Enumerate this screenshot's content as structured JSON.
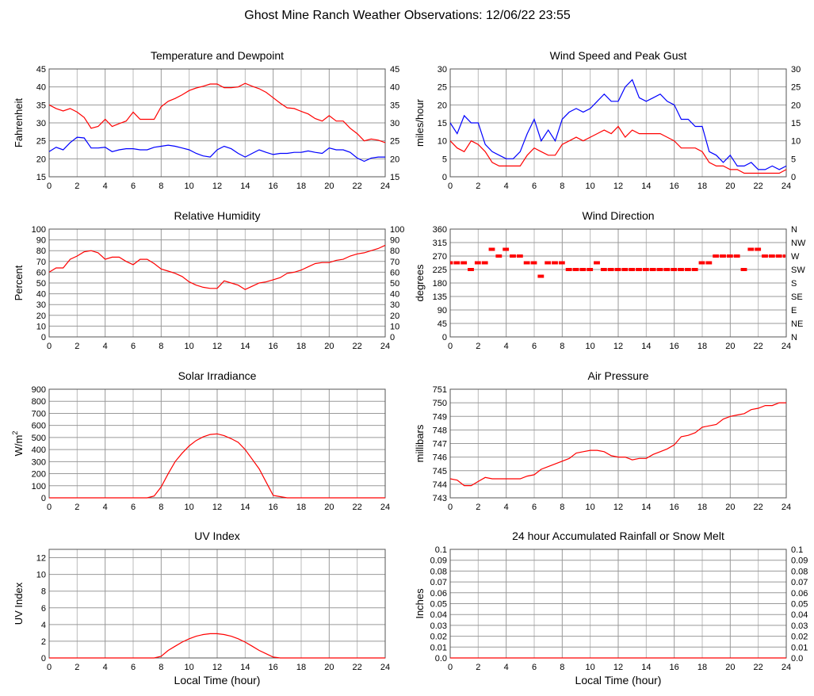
{
  "title": "Ghost Mine Ranch Weather Observations: 12/06/22 23:55",
  "x_axis_label": "Local Time (hour)",
  "colors": {
    "red": "#ff0000",
    "blue": "#0000ff",
    "grid": "#999999",
    "grid_light": "#cccccc"
  },
  "chart_data": [
    {
      "id": "temperature",
      "type": "line",
      "title": "Temperature and Dewpoint",
      "ylabel": "Fahrenheit",
      "xlim": [
        0,
        24
      ],
      "ylim": [
        15,
        45
      ],
      "xticks": [
        0,
        2,
        4,
        6,
        8,
        10,
        12,
        14,
        16,
        18,
        20,
        22,
        24
      ],
      "yticks": [
        15,
        20,
        25,
        30,
        35,
        40,
        45
      ],
      "right_ticks": [
        "15",
        "20",
        "25",
        "30",
        "35",
        "40",
        "45"
      ],
      "grid": true,
      "x": [
        0,
        0.5,
        1,
        1.5,
        2,
        2.5,
        3,
        3.5,
        4,
        4.5,
        5,
        5.5,
        6,
        6.5,
        7,
        7.5,
        8,
        8.5,
        9,
        9.5,
        10,
        10.5,
        11,
        11.5,
        12,
        12.5,
        13,
        13.5,
        14,
        14.5,
        15,
        15.5,
        16,
        16.5,
        17,
        17.5,
        18,
        18.5,
        19,
        19.5,
        20,
        20.5,
        21,
        21.5,
        22,
        22.5,
        23,
        23.5,
        24
      ],
      "series": [
        {
          "color": "#ff0000",
          "values": [
            35,
            34,
            33.3,
            34,
            33,
            31.5,
            28.5,
            29,
            31,
            29,
            29.8,
            30.5,
            33,
            31,
            31,
            31,
            34.5,
            36,
            36.8,
            37.8,
            39,
            39.7,
            40.2,
            40.8,
            40.8,
            39.8,
            39.8,
            40,
            41,
            40.2,
            39.5,
            38.5,
            37,
            35.5,
            34.2,
            34,
            33.2,
            32.5,
            31.2,
            30.5,
            32,
            30.5,
            30.5,
            28.5,
            27,
            25,
            25.5,
            25.2,
            24.5
          ]
        },
        {
          "color": "#0000ff",
          "values": [
            22,
            23.2,
            22.5,
            24.5,
            26,
            25.8,
            23,
            23,
            23.2,
            22,
            22.5,
            22.8,
            22.8,
            22.5,
            22.5,
            23.2,
            23.5,
            23.8,
            23.5,
            23,
            22.5,
            21.5,
            20.8,
            20.5,
            22.5,
            23.5,
            22.8,
            21.5,
            20.5,
            21.5,
            22.5,
            21.8,
            21.2,
            21.5,
            21.5,
            21.8,
            21.8,
            22.2,
            21.8,
            21.5,
            23,
            22.5,
            22.5,
            21.8,
            20.2,
            19.3,
            20.2,
            20.5,
            20.5
          ]
        }
      ]
    },
    {
      "id": "wind-speed",
      "type": "line",
      "title": "Wind Speed and Peak Gust",
      "ylabel": "miles/hour",
      "xlim": [
        0,
        24
      ],
      "ylim": [
        0,
        30
      ],
      "xticks": [
        0,
        2,
        4,
        6,
        8,
        10,
        12,
        14,
        16,
        18,
        20,
        22,
        24
      ],
      "yticks": [
        0,
        5,
        10,
        15,
        20,
        25,
        30
      ],
      "right_ticks": [
        "0",
        "5",
        "10",
        "15",
        "20",
        "25",
        "30"
      ],
      "grid": true,
      "x": [
        0,
        0.5,
        1,
        1.5,
        2,
        2.5,
        3,
        3.5,
        4,
        4.5,
        5,
        5.5,
        6,
        6.5,
        7,
        7.5,
        8,
        8.5,
        9,
        9.5,
        10,
        10.5,
        11,
        11.5,
        12,
        12.5,
        13,
        13.5,
        14,
        14.5,
        15,
        15.5,
        16,
        16.5,
        17,
        17.5,
        18,
        18.5,
        19,
        19.5,
        20,
        20.5,
        21,
        21.5,
        22,
        22.5,
        23,
        23.5,
        24
      ],
      "series": [
        {
          "color": "#0000ff",
          "values": [
            15,
            12,
            17,
            15,
            15,
            9,
            7,
            6,
            5,
            5,
            7,
            12,
            16,
            10,
            13,
            10,
            16,
            18,
            19,
            18,
            19,
            21,
            23,
            21,
            21,
            25,
            27,
            22,
            21,
            22,
            23,
            21,
            20,
            16,
            16,
            14,
            14,
            7,
            6,
            4,
            6,
            3,
            3,
            4,
            2,
            2,
            3,
            2,
            3
          ]
        },
        {
          "color": "#ff0000",
          "values": [
            10,
            8,
            7,
            10,
            9,
            7,
            4,
            3,
            3,
            3,
            3,
            6,
            8,
            7,
            6,
            6,
            9,
            10,
            11,
            10,
            11,
            12,
            13,
            12,
            14,
            11,
            13,
            12,
            12,
            12,
            12,
            11,
            10,
            8,
            8,
            8,
            7,
            4,
            3,
            3,
            2,
            2,
            1,
            1,
            1,
            1,
            1,
            1,
            2
          ]
        }
      ]
    },
    {
      "id": "humidity",
      "type": "line",
      "title": "Relative Humidity",
      "ylabel": "Percent",
      "xlim": [
        0,
        24
      ],
      "ylim": [
        0,
        100
      ],
      "xticks": [
        0,
        2,
        4,
        6,
        8,
        10,
        12,
        14,
        16,
        18,
        20,
        22,
        24
      ],
      "yticks": [
        0,
        10,
        20,
        30,
        40,
        50,
        60,
        70,
        80,
        90,
        100
      ],
      "right_ticks": [
        "0",
        "10",
        "20",
        "30",
        "40",
        "50",
        "60",
        "70",
        "80",
        "90",
        "100"
      ],
      "grid": true,
      "x": [
        0,
        0.5,
        1,
        1.5,
        2,
        2.5,
        3,
        3.5,
        4,
        4.5,
        5,
        5.5,
        6,
        6.5,
        7,
        7.5,
        8,
        8.5,
        9,
        9.5,
        10,
        10.5,
        11,
        11.5,
        12,
        12.5,
        13,
        13.5,
        14,
        14.5,
        15,
        15.5,
        16,
        16.5,
        17,
        17.5,
        18,
        18.5,
        19,
        19.5,
        20,
        20.5,
        21,
        21.5,
        22,
        22.5,
        23,
        23.5,
        24
      ],
      "series": [
        {
          "color": "#ff0000",
          "values": [
            60,
            64,
            64,
            72,
            75,
            79,
            80,
            78,
            72,
            74,
            74,
            70,
            67,
            72,
            72,
            68,
            63,
            61,
            59,
            56,
            51,
            48,
            46,
            45,
            45,
            52,
            50,
            48,
            44,
            47,
            50,
            51,
            53,
            55,
            59,
            60,
            62,
            65,
            68,
            69,
            69,
            71,
            72,
            75,
            77,
            78,
            80,
            82,
            85
          ]
        }
      ]
    },
    {
      "id": "wind-direction",
      "type": "scatter",
      "title": "Wind Direction",
      "ylabel": "degrees",
      "xlim": [
        0,
        24
      ],
      "ylim": [
        0,
        360
      ],
      "xticks": [
        0,
        2,
        4,
        6,
        8,
        10,
        12,
        14,
        16,
        18,
        20,
        22,
        24
      ],
      "yticks": [
        0,
        45,
        90,
        135,
        180,
        225,
        270,
        315,
        360
      ],
      "right_ticks": [
        "N",
        "NE",
        "E",
        "SE",
        "S",
        "SW",
        "W",
        "NW",
        "N"
      ],
      "grid": true,
      "x": [
        0,
        0.5,
        1,
        1.5,
        2,
        2.5,
        3,
        3.5,
        4,
        4.5,
        5,
        5.5,
        6,
        6.5,
        7,
        7.5,
        8,
        8.5,
        9,
        9.5,
        10,
        10.5,
        11,
        11.5,
        12,
        12.5,
        13,
        13.5,
        14,
        14.5,
        15,
        15.5,
        16,
        16.5,
        17,
        17.5,
        18,
        18.5,
        19,
        19.5,
        20,
        20.5,
        21,
        21.5,
        22,
        22.5,
        23,
        23.5,
        24
      ],
      "series": [
        {
          "color": "#ff0000",
          "values": [
            247.5,
            247.5,
            247.5,
            225,
            247.5,
            247.5,
            292.5,
            270,
            292.5,
            270,
            270,
            247.5,
            247.5,
            202.5,
            247.5,
            247.5,
            247.5,
            225,
            225,
            225,
            225,
            247.5,
            225,
            225,
            225,
            225,
            225,
            225,
            225,
            225,
            225,
            225,
            225,
            225,
            225,
            225,
            247.5,
            247.5,
            270,
            270,
            270,
            270,
            225,
            292.5,
            292.5,
            270,
            270,
            270,
            270
          ]
        }
      ]
    },
    {
      "id": "solar",
      "type": "line",
      "title": "Solar Irradiance",
      "ylabel": "W/m",
      "ylabel_sup": "2",
      "xlim": [
        0,
        24
      ],
      "ylim": [
        0,
        900
      ],
      "xticks": [
        0,
        2,
        4,
        6,
        8,
        10,
        12,
        14,
        16,
        18,
        20,
        22,
        24
      ],
      "yticks": [
        0,
        100,
        200,
        300,
        400,
        500,
        600,
        700,
        800,
        900
      ],
      "right_ticks": [],
      "grid": true,
      "x": [
        0,
        0.5,
        1,
        1.5,
        2,
        2.5,
        3,
        3.5,
        4,
        4.5,
        5,
        5.5,
        6,
        6.5,
        7,
        7.5,
        8,
        8.5,
        9,
        9.5,
        10,
        10.5,
        11,
        11.5,
        12,
        12.5,
        13,
        13.5,
        14,
        14.5,
        15,
        15.5,
        16,
        16.5,
        17,
        17.5,
        18,
        18.5,
        19,
        19.5,
        20,
        20.5,
        21,
        21.5,
        22,
        22.5,
        23,
        23.5,
        24
      ],
      "series": [
        {
          "color": "#ff0000",
          "values": [
            0,
            0,
            0,
            0,
            0,
            0,
            0,
            0,
            0,
            0,
            0,
            0,
            0,
            0,
            0,
            15,
            90,
            200,
            300,
            370,
            430,
            475,
            505,
            525,
            530,
            515,
            490,
            460,
            400,
            320,
            240,
            130,
            20,
            10,
            0,
            0,
            0,
            0,
            0,
            0,
            0,
            0,
            0,
            0,
            0,
            0,
            0,
            0,
            0
          ]
        }
      ]
    },
    {
      "id": "pressure",
      "type": "line",
      "title": "Air Pressure",
      "ylabel": "millibars",
      "xlim": [
        0,
        24
      ],
      "ylim": [
        743,
        751
      ],
      "xticks": [
        0,
        2,
        4,
        6,
        8,
        10,
        12,
        14,
        16,
        18,
        20,
        22,
        24
      ],
      "yticks": [
        743,
        744,
        745,
        746,
        747,
        748,
        749,
        750,
        751
      ],
      "right_ticks": [],
      "grid": true,
      "x": [
        0,
        0.5,
        1,
        1.5,
        2,
        2.5,
        3,
        3.5,
        4,
        4.5,
        5,
        5.5,
        6,
        6.5,
        7,
        7.5,
        8,
        8.5,
        9,
        9.5,
        10,
        10.5,
        11,
        11.5,
        12,
        12.5,
        13,
        13.5,
        14,
        14.5,
        15,
        15.5,
        16,
        16.5,
        17,
        17.5,
        18,
        18.5,
        19,
        19.5,
        20,
        20.5,
        21,
        21.5,
        22,
        22.5,
        23,
        23.5,
        24
      ],
      "series": [
        {
          "color": "#ff0000",
          "values": [
            744.4,
            744.3,
            743.9,
            743.9,
            744.2,
            744.5,
            744.4,
            744.4,
            744.4,
            744.4,
            744.4,
            744.6,
            744.7,
            745.1,
            745.3,
            745.5,
            745.7,
            745.9,
            746.3,
            746.4,
            746.5,
            746.5,
            746.4,
            746.1,
            746,
            746,
            745.8,
            745.9,
            745.9,
            746.2,
            746.4,
            746.6,
            746.9,
            747.5,
            747.6,
            747.8,
            748.2,
            748.3,
            748.4,
            748.8,
            749,
            749.1,
            749.2,
            749.5,
            749.6,
            749.8,
            749.8,
            750,
            750
          ]
        }
      ]
    },
    {
      "id": "uv",
      "type": "line",
      "title": "UV Index",
      "ylabel": "UV Index",
      "xlim": [
        0,
        24
      ],
      "ylim": [
        0,
        13
      ],
      "xticks": [
        0,
        2,
        4,
        6,
        8,
        10,
        12,
        14,
        16,
        18,
        20,
        22,
        24
      ],
      "yticks": [
        0,
        2,
        4,
        6,
        8,
        10,
        12
      ],
      "right_ticks": [],
      "grid": true,
      "x": [
        0,
        0.5,
        1,
        1.5,
        2,
        2.5,
        3,
        3.5,
        4,
        4.5,
        5,
        5.5,
        6,
        6.5,
        7,
        7.5,
        8,
        8.5,
        9,
        9.5,
        10,
        10.5,
        11,
        11.5,
        12,
        12.5,
        13,
        13.5,
        14,
        14.5,
        15,
        15.5,
        16,
        16.5,
        17,
        17.5,
        18,
        18.5,
        19,
        19.5,
        20,
        20.5,
        21,
        21.5,
        22,
        22.5,
        23,
        23.5,
        24
      ],
      "series": [
        {
          "color": "#ff0000",
          "values": [
            0,
            0,
            0,
            0,
            0,
            0,
            0,
            0,
            0,
            0,
            0,
            0,
            0,
            0,
            0,
            0,
            0.2,
            0.9,
            1.4,
            1.9,
            2.3,
            2.6,
            2.8,
            2.9,
            2.9,
            2.8,
            2.6,
            2.3,
            1.9,
            1.4,
            0.9,
            0.5,
            0.1,
            0,
            0,
            0,
            0,
            0,
            0,
            0,
            0,
            0,
            0,
            0,
            0,
            0,
            0,
            0,
            0
          ]
        }
      ]
    },
    {
      "id": "rainfall",
      "type": "line",
      "title": "24 hour Accumulated Rainfall or Snow Melt",
      "ylabel": "Inches",
      "xlim": [
        0,
        24
      ],
      "ylim": [
        0,
        0.1
      ],
      "xticks": [
        0,
        2,
        4,
        6,
        8,
        10,
        12,
        14,
        16,
        18,
        20,
        22,
        24
      ],
      "yticks": [
        0,
        0.01,
        0.02,
        0.03,
        0.04,
        0.05,
        0.06,
        0.07,
        0.08,
        0.09,
        0.1
      ],
      "tick_labels": [
        "0.0",
        "0.01",
        "0.02",
        "0.03",
        "0.04",
        "0.05",
        "0.06",
        "0.07",
        "0.08",
        "0.09",
        "0.1"
      ],
      "right_ticks": [
        "0.0",
        "0.01",
        "0.02",
        "0.03",
        "0.04",
        "0.05",
        "0.06",
        "0.07",
        "0.08",
        "0.09",
        "0.1"
      ],
      "grid": true,
      "x": [
        0,
        24
      ],
      "series": [
        {
          "color": "#ff0000",
          "values": [
            0,
            0
          ]
        }
      ]
    }
  ]
}
